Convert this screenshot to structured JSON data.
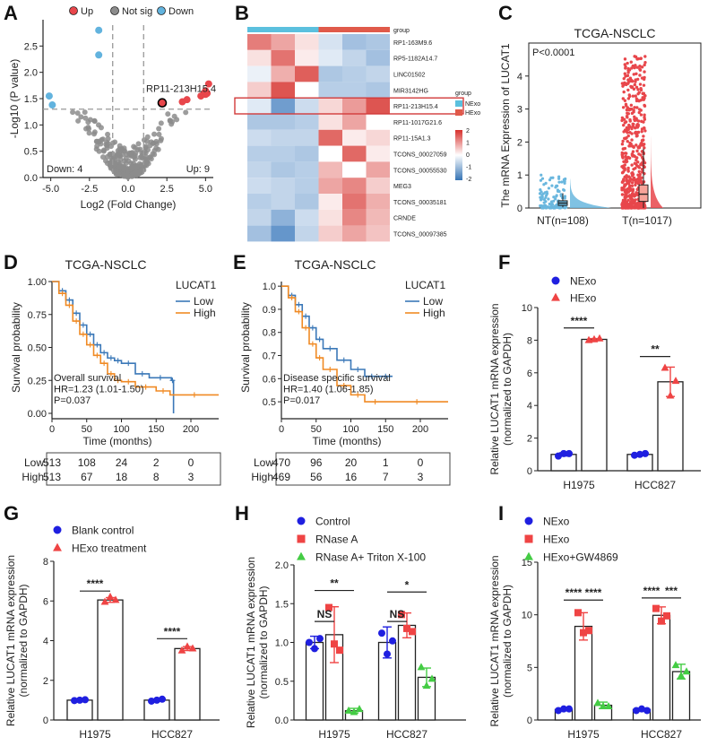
{
  "chart_data": [
    {
      "panel": "A",
      "type": "scatter",
      "subtype": "volcano",
      "xlabel": "Log2 (Fold Change)",
      "ylabel": "-Log10 (P value)",
      "xlim": [
        -5.5,
        5.5
      ],
      "ylim": [
        0,
        3.0
      ],
      "xticks": [
        "-5.0",
        "-2.5",
        "0.0",
        "2.5",
        "5.0"
      ],
      "yticks": [
        "0.0",
        "0.5",
        "1.0",
        "1.5",
        "2.0",
        "2.5"
      ],
      "legend": [
        "Up",
        "Not sig",
        "Down"
      ],
      "colors": {
        "up": "#e8464b",
        "notsig": "#8c8c8c",
        "down": "#62b3de"
      },
      "thresholds": {
        "x": [
          -1,
          1
        ],
        "y": 1.3
      },
      "annotation": "RP11-213H15.4",
      "annotation_point": [
        2.2,
        1.42
      ],
      "count_down": "Down: 4",
      "count_up": "Up: 9",
      "down_points": [
        [
          -1.9,
          2.8
        ],
        [
          -1.9,
          2.33
        ],
        [
          -5.1,
          1.55
        ],
        [
          -4.9,
          1.38
        ]
      ],
      "up_points": [
        [
          2.2,
          1.42
        ],
        [
          4.7,
          1.55
        ],
        [
          4.9,
          1.6
        ],
        [
          5.0,
          1.58
        ],
        [
          5.1,
          1.6
        ],
        [
          5.0,
          1.65
        ],
        [
          5.2,
          1.78
        ],
        [
          3.8,
          1.48
        ],
        [
          3.5,
          1.44
        ]
      ]
    },
    {
      "panel": "B",
      "type": "heatmap",
      "rows": [
        "RP1-163M9.6",
        "RP5-1182A14.7",
        "LINC01502",
        "MIR3142HG",
        "RP11-213H15.4",
        "RP11-1017G21.6",
        "RP11-15A1.3",
        "TCONS_00027059",
        "TCONS_00055530",
        "MEG3",
        "TCONS_00035181",
        "CRNDE",
        "TCONS_00097385"
      ],
      "columns": 6,
      "highlight_row": "RP11-213H15.4",
      "values": [
        [
          1.3,
          0.9,
          0.3,
          -0.4,
          -0.9,
          -0.8
        ],
        [
          0.3,
          1.4,
          0.2,
          -0.3,
          -0.6,
          -0.9
        ],
        [
          -0.2,
          0.8,
          1.6,
          -0.8,
          -0.7,
          -0.6
        ],
        [
          0.5,
          1.7,
          0.0,
          -0.7,
          -0.7,
          -0.8
        ],
        [
          -0.3,
          -1.4,
          -0.5,
          0.4,
          1.0,
          1.7
        ],
        [
          -0.8,
          -0.8,
          -0.7,
          0.3,
          0.9,
          0.0
        ],
        [
          -0.5,
          -0.6,
          -0.6,
          1.5,
          0.2,
          0.4
        ],
        [
          -0.7,
          -0.7,
          -0.8,
          0.0,
          1.5,
          0.2
        ],
        [
          -0.6,
          -0.8,
          -0.7,
          0.7,
          0.0,
          0.9
        ],
        [
          -0.5,
          -0.6,
          -0.7,
          0.9,
          1.2,
          0.5
        ],
        [
          -0.7,
          -0.6,
          -0.8,
          0.2,
          1.4,
          0.8
        ],
        [
          -0.6,
          -1.1,
          -0.5,
          0.3,
          1.2,
          0.7
        ],
        [
          -0.9,
          -1.5,
          -0.6,
          0.5,
          0.9,
          0.6
        ]
      ],
      "legend_title": "group",
      "groups": [
        "NExo",
        "HExo"
      ],
      "group_colors": [
        "#5bc0de",
        "#e05a4a"
      ],
      "scale_ticks": [
        "2",
        "1",
        "0",
        "-1",
        "-2"
      ],
      "header": "group"
    },
    {
      "panel": "C",
      "type": "violin-box",
      "title": "TCGA-NSCLC",
      "ylabel": "The mRNA Expression of LUCAT1",
      "pvalue": "P<0.0001",
      "categories": [
        "NT(n=108)",
        "T(n=1017)"
      ],
      "colors": [
        "#6ab7de",
        "#e8464b"
      ],
      "ylim": [
        0,
        5
      ],
      "yticks": [
        "0",
        "1",
        "2",
        "3",
        "4"
      ],
      "box_stats": [
        [
          0.02,
          0.08,
          0.15,
          0.22,
          0.45
        ],
        [
          0.0,
          0.2,
          0.42,
          0.7,
          1.8
        ]
      ]
    },
    {
      "panel": "D",
      "type": "line",
      "subtype": "kaplan-meier",
      "title": "TCGA-NSCLC",
      "xlabel": "Time (months)",
      "ylabel": "Survival probability",
      "legend_title": "LUCAT1",
      "legend": [
        "Low",
        "High"
      ],
      "colors": [
        "#3b78b8",
        "#f08a24"
      ],
      "xticks": [
        "0",
        "50",
        "100",
        "150",
        "200"
      ],
      "yticks": [
        "0.00",
        "0.25",
        "0.50",
        "0.75",
        "1.00"
      ],
      "xlim": [
        0,
        240
      ],
      "ylim": [
        0,
        1
      ],
      "series": [
        {
          "name": "Low",
          "x": [
            0,
            10,
            20,
            30,
            40,
            50,
            60,
            70,
            80,
            90,
            100,
            120,
            140,
            172,
            175
          ],
          "y": [
            1.0,
            0.93,
            0.86,
            0.76,
            0.67,
            0.6,
            0.52,
            0.46,
            0.42,
            0.4,
            0.38,
            0.3,
            0.27,
            0.25,
            0.0
          ]
        },
        {
          "name": "High",
          "x": [
            0,
            10,
            20,
            30,
            40,
            50,
            60,
            70,
            80,
            90,
            100,
            120,
            150,
            170,
            240
          ],
          "y": [
            1.0,
            0.91,
            0.82,
            0.7,
            0.6,
            0.52,
            0.44,
            0.38,
            0.3,
            0.25,
            0.24,
            0.2,
            0.17,
            0.14,
            0.14
          ]
        }
      ],
      "annotations": [
        "Overall survival",
        "HR=1.23 (1.01-1.50)",
        "P=0.037"
      ],
      "risk_table": {
        "rows": [
          "Low",
          "High"
        ],
        "values": [
          [
            "513",
            "108",
            "24",
            "2",
            "0"
          ],
          [
            "513",
            "67",
            "18",
            "8",
            "3"
          ]
        ]
      }
    },
    {
      "panel": "E",
      "type": "line",
      "subtype": "kaplan-meier",
      "title": "TCGA-NSCLC",
      "xlabel": "Time (months)",
      "ylabel": "Survival probability",
      "legend_title": "LUCAT1",
      "legend": [
        "Low",
        "High"
      ],
      "colors": [
        "#3b78b8",
        "#f08a24"
      ],
      "xticks": [
        "0",
        "50",
        "100",
        "150",
        "200"
      ],
      "yticks": [
        "0.5",
        "0.6",
        "0.7",
        "0.8",
        "0.9",
        "1.0"
      ],
      "xlim": [
        0,
        240
      ],
      "ylim": [
        0.45,
        1.02
      ],
      "series": [
        {
          "name": "Low",
          "x": [
            0,
            10,
            20,
            30,
            40,
            50,
            60,
            80,
            100,
            120,
            140,
            160
          ],
          "y": [
            1.0,
            0.96,
            0.92,
            0.87,
            0.82,
            0.77,
            0.73,
            0.68,
            0.64,
            0.61,
            0.61,
            0.61
          ]
        },
        {
          "name": "High",
          "x": [
            0,
            10,
            20,
            30,
            40,
            50,
            60,
            80,
            100,
            120,
            150,
            240
          ],
          "y": [
            1.0,
            0.95,
            0.89,
            0.82,
            0.75,
            0.69,
            0.64,
            0.57,
            0.53,
            0.5,
            0.5,
            0.5
          ]
        }
      ],
      "annotations": [
        "Disease specific survival",
        "HR=1.40 (1.06-1.85)",
        "P=0.017"
      ],
      "risk_table": {
        "rows": [
          "Low",
          "High"
        ],
        "values": [
          [
            "470",
            "96",
            "20",
            "1",
            "0"
          ],
          [
            "469",
            "56",
            "16",
            "7",
            "3"
          ]
        ]
      }
    },
    {
      "panel": "F",
      "type": "bar",
      "ylabel": "Relative LUCAT1 mRNA expression\n(normalized to GAPDH)",
      "categories": [
        "H1975",
        "HCC827"
      ],
      "ylim": [
        0,
        10
      ],
      "yticks": [
        "0",
        "2",
        "4",
        "6",
        "8",
        "10"
      ],
      "series": [
        {
          "name": "NExo",
          "values": [
            1.0,
            1.0
          ],
          "errors": [
            0.1,
            0.05
          ],
          "points": [
            [
              0.9,
              1.05,
              1.05
            ],
            [
              0.95,
              1.0,
              1.05
            ]
          ],
          "color": "#1f1fe0",
          "marker": "circle"
        },
        {
          "name": "HExo",
          "values": [
            8.05,
            5.45
          ],
          "errors": [
            0.05,
            0.9
          ],
          "points": [
            [
              8.0,
              8.05,
              8.1
            ],
            [
              6.3,
              4.6,
              5.5
            ]
          ],
          "color": "#ef4444",
          "marker": "triangle"
        }
      ],
      "significance": [
        "****",
        "**"
      ]
    },
    {
      "panel": "G",
      "type": "bar",
      "ylabel": "Relative LUCAT1 mRNA expression\n(normalized to GAPDH)",
      "categories": [
        "H1975",
        "HCC827"
      ],
      "ylim": [
        0,
        8
      ],
      "yticks": [
        "0",
        "2",
        "4",
        "6",
        "8"
      ],
      "series": [
        {
          "name": "Blank control",
          "values": [
            1.0,
            1.0
          ],
          "errors": [
            0.03,
            0.05
          ],
          "points": [
            [
              0.98,
              1.0,
              1.02
            ],
            [
              0.95,
              1.0,
              1.05
            ]
          ],
          "color": "#1f1fe0",
          "marker": "circle"
        },
        {
          "name": "HExo treatment",
          "values": [
            6.05,
            3.6
          ],
          "errors": [
            0.12,
            0.1
          ],
          "points": [
            [
              5.95,
              6.2,
              6.05
            ],
            [
              3.5,
              3.7,
              3.6
            ]
          ],
          "color": "#ef4444",
          "marker": "triangle"
        }
      ],
      "significance": [
        "****",
        "****"
      ]
    },
    {
      "panel": "H",
      "type": "bar",
      "ylabel": "Relative LUCAT1 mRNA expression\n(normalized to GAPDH)",
      "categories": [
        "H1975",
        "HCC827"
      ],
      "ylim": [
        0,
        2.0
      ],
      "yticks": [
        "0.0",
        "0.5",
        "1.0",
        "1.5",
        "2.0"
      ],
      "series": [
        {
          "name": "Control",
          "values": [
            1.0,
            1.0
          ],
          "errors": [
            0.08,
            0.2
          ],
          "points": [
            [
              1.0,
              0.92,
              1.05
            ],
            [
              1.12,
              0.85,
              1.02
            ]
          ],
          "color": "#1f1fe0",
          "marker": "circle"
        },
        {
          "name": "RNase A",
          "values": [
            1.1,
            1.22
          ],
          "errors": [
            0.36,
            0.16
          ],
          "points": [
            [
              1.45,
              0.98,
              0.9
            ],
            [
              1.36,
              1.18,
              1.14
            ]
          ],
          "color": "#ef4444",
          "marker": "square"
        },
        {
          "name": "RNase A+ Triton X-100",
          "values": [
            0.12,
            0.55
          ],
          "errors": [
            0.03,
            0.12
          ],
          "points": [
            [
              0.12,
              0.1,
              0.14
            ],
            [
              0.68,
              0.44,
              0.53
            ]
          ],
          "color": "#44cc44",
          "marker": "triangle"
        }
      ],
      "significance": [
        "**",
        "NS",
        "*",
        "NS"
      ]
    },
    {
      "panel": "I",
      "type": "bar",
      "ylabel": "Relative LUCAT1 mRNA expression\n(normalized to GAPDH)",
      "categories": [
        "H1975",
        "HCC827"
      ],
      "ylim": [
        0,
        15
      ],
      "yticks": [
        "0",
        "5",
        "10",
        "15"
      ],
      "series": [
        {
          "name": "NExo",
          "values": [
            1.0,
            1.0
          ],
          "errors": [
            0.1,
            0.1
          ],
          "points": [
            [
              0.9,
              1.05,
              1.05
            ],
            [
              0.9,
              1.05,
              0.9
            ]
          ],
          "color": "#1f1fe0",
          "marker": "circle"
        },
        {
          "name": "HExo",
          "values": [
            8.9,
            9.95
          ],
          "errors": [
            1.3,
            0.8
          ],
          "points": [
            [
              10.2,
              8.3,
              8.5
            ],
            [
              10.6,
              9.4,
              9.9
            ]
          ],
          "color": "#ef4444",
          "marker": "square"
        },
        {
          "name": "HExo+GW4869",
          "values": [
            1.4,
            4.6
          ],
          "errors": [
            0.3,
            0.7
          ],
          "points": [
            [
              1.6,
              1.3,
              1.3
            ],
            [
              5.2,
              4.2,
              4.6
            ]
          ],
          "color": "#44cc44",
          "marker": "triangle"
        }
      ],
      "significance": [
        "****",
        "****",
        "****",
        "***"
      ]
    }
  ]
}
